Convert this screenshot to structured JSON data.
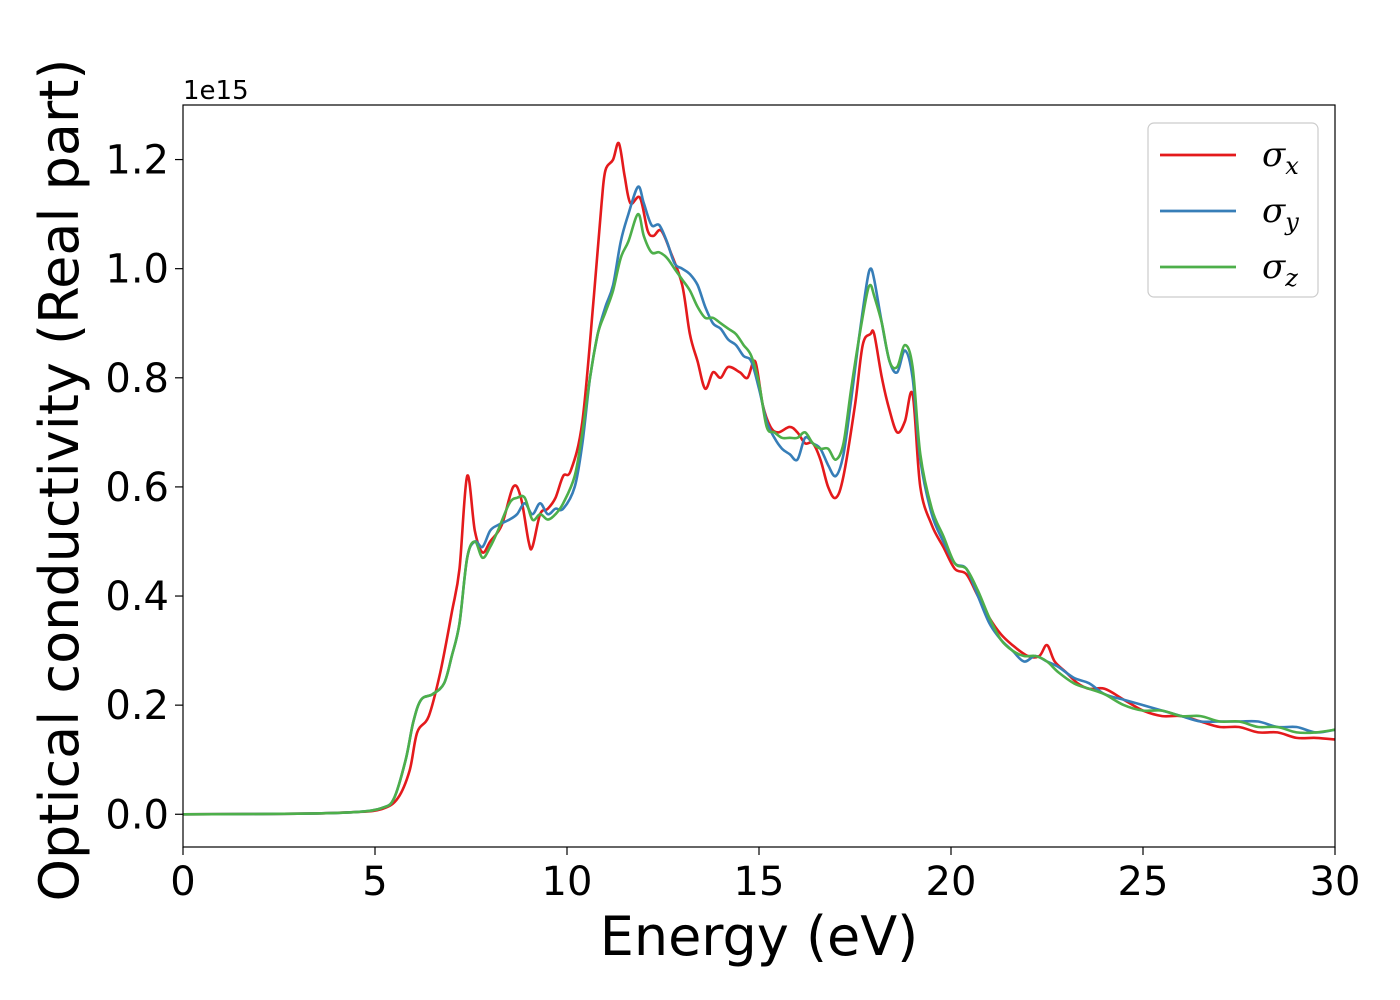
{
  "chart_data": {
    "type": "line",
    "xlabel": "Energy (eV)",
    "ylabel": "Optical conductivity (Real part)",
    "y_offset_label": "1e15",
    "xlim": [
      0,
      30
    ],
    "ylim": [
      -0.06,
      1.3
    ],
    "x_ticks": [
      "0",
      "5",
      "10",
      "15",
      "20",
      "25",
      "30"
    ],
    "y_ticks": [
      "0.0",
      "0.2",
      "0.4",
      "0.6",
      "0.8",
      "1.0",
      "1.2"
    ],
    "grid": false,
    "legend_position": "top-right",
    "series": [
      {
        "name": "σx",
        "symbol": "σ",
        "sub": "x",
        "color": "#e41a1c",
        "points": [
          [
            0,
            0
          ],
          [
            3,
            0.001
          ],
          [
            4.5,
            0.004
          ],
          [
            5.2,
            0.01
          ],
          [
            5.6,
            0.03
          ],
          [
            5.9,
            0.08
          ],
          [
            6.1,
            0.15
          ],
          [
            6.4,
            0.18
          ],
          [
            6.7,
            0.26
          ],
          [
            7.0,
            0.37
          ],
          [
            7.2,
            0.45
          ],
          [
            7.4,
            0.62
          ],
          [
            7.6,
            0.52
          ],
          [
            7.8,
            0.48
          ],
          [
            8.0,
            0.5
          ],
          [
            8.3,
            0.53
          ],
          [
            8.6,
            0.6
          ],
          [
            8.8,
            0.58
          ],
          [
            9.0,
            0.5
          ],
          [
            9.1,
            0.49
          ],
          [
            9.3,
            0.55
          ],
          [
            9.5,
            0.56
          ],
          [
            9.7,
            0.58
          ],
          [
            9.9,
            0.62
          ],
          [
            10.1,
            0.63
          ],
          [
            10.4,
            0.72
          ],
          [
            10.7,
            0.95
          ],
          [
            10.9,
            1.12
          ],
          [
            11.0,
            1.18
          ],
          [
            11.2,
            1.2
          ],
          [
            11.35,
            1.23
          ],
          [
            11.5,
            1.17
          ],
          [
            11.65,
            1.12
          ],
          [
            11.9,
            1.13
          ],
          [
            12.1,
            1.07
          ],
          [
            12.25,
            1.06
          ],
          [
            12.45,
            1.07
          ],
          [
            12.7,
            1.03
          ],
          [
            13.0,
            0.97
          ],
          [
            13.2,
            0.88
          ],
          [
            13.4,
            0.83
          ],
          [
            13.6,
            0.78
          ],
          [
            13.8,
            0.81
          ],
          [
            14.0,
            0.8
          ],
          [
            14.2,
            0.82
          ],
          [
            14.5,
            0.81
          ],
          [
            14.7,
            0.8
          ],
          [
            14.9,
            0.83
          ],
          [
            15.1,
            0.75
          ],
          [
            15.3,
            0.71
          ],
          [
            15.5,
            0.7
          ],
          [
            15.8,
            0.71
          ],
          [
            16.0,
            0.7
          ],
          [
            16.2,
            0.68
          ],
          [
            16.4,
            0.68
          ],
          [
            16.6,
            0.65
          ],
          [
            16.8,
            0.6
          ],
          [
            17.0,
            0.58
          ],
          [
            17.2,
            0.62
          ],
          [
            17.5,
            0.75
          ],
          [
            17.7,
            0.86
          ],
          [
            17.9,
            0.88
          ],
          [
            18.0,
            0.88
          ],
          [
            18.2,
            0.8
          ],
          [
            18.4,
            0.74
          ],
          [
            18.6,
            0.7
          ],
          [
            18.8,
            0.72
          ],
          [
            19.0,
            0.77
          ],
          [
            19.2,
            0.6
          ],
          [
            19.5,
            0.53
          ],
          [
            19.8,
            0.49
          ],
          [
            20.1,
            0.45
          ],
          [
            20.4,
            0.44
          ],
          [
            20.7,
            0.4
          ],
          [
            21.0,
            0.36
          ],
          [
            21.3,
            0.33
          ],
          [
            21.6,
            0.31
          ],
          [
            22.0,
            0.29
          ],
          [
            22.3,
            0.29
          ],
          [
            22.5,
            0.31
          ],
          [
            22.7,
            0.28
          ],
          [
            23.0,
            0.26
          ],
          [
            23.3,
            0.24
          ],
          [
            23.6,
            0.23
          ],
          [
            24.0,
            0.23
          ],
          [
            24.5,
            0.21
          ],
          [
            25.0,
            0.19
          ],
          [
            25.5,
            0.18
          ],
          [
            26.0,
            0.18
          ],
          [
            26.5,
            0.17
          ],
          [
            27.0,
            0.16
          ],
          [
            27.5,
            0.16
          ],
          [
            28.0,
            0.15
          ],
          [
            28.5,
            0.15
          ],
          [
            29.0,
            0.14
          ],
          [
            29.5,
            0.14
          ],
          [
            30.0,
            0.137
          ]
        ]
      },
      {
        "name": "σy",
        "symbol": "σ",
        "sub": "y",
        "color": "#377eb8",
        "points": [
          [
            0,
            0
          ],
          [
            3,
            0.001
          ],
          [
            4.5,
            0.004
          ],
          [
            5.2,
            0.012
          ],
          [
            5.5,
            0.03
          ],
          [
            5.8,
            0.1
          ],
          [
            6.0,
            0.17
          ],
          [
            6.2,
            0.21
          ],
          [
            6.5,
            0.22
          ],
          [
            6.8,
            0.24
          ],
          [
            7.0,
            0.29
          ],
          [
            7.2,
            0.35
          ],
          [
            7.4,
            0.47
          ],
          [
            7.6,
            0.5
          ],
          [
            7.8,
            0.49
          ],
          [
            8.0,
            0.52
          ],
          [
            8.2,
            0.53
          ],
          [
            8.5,
            0.54
          ],
          [
            8.7,
            0.55
          ],
          [
            8.9,
            0.57
          ],
          [
            9.1,
            0.55
          ],
          [
            9.3,
            0.57
          ],
          [
            9.5,
            0.55
          ],
          [
            9.7,
            0.56
          ],
          [
            9.9,
            0.56
          ],
          [
            10.2,
            0.6
          ],
          [
            10.4,
            0.68
          ],
          [
            10.6,
            0.8
          ],
          [
            10.8,
            0.88
          ],
          [
            11.0,
            0.93
          ],
          [
            11.2,
            0.97
          ],
          [
            11.4,
            1.05
          ],
          [
            11.6,
            1.1
          ],
          [
            11.85,
            1.15
          ],
          [
            12.0,
            1.12
          ],
          [
            12.2,
            1.08
          ],
          [
            12.4,
            1.08
          ],
          [
            12.6,
            1.05
          ],
          [
            12.8,
            1.01
          ],
          [
            13.0,
            1.0
          ],
          [
            13.2,
            0.99
          ],
          [
            13.4,
            0.97
          ],
          [
            13.6,
            0.93
          ],
          [
            13.8,
            0.9
          ],
          [
            14.0,
            0.89
          ],
          [
            14.2,
            0.87
          ],
          [
            14.4,
            0.86
          ],
          [
            14.6,
            0.84
          ],
          [
            14.8,
            0.83
          ],
          [
            15.0,
            0.78
          ],
          [
            15.2,
            0.72
          ],
          [
            15.4,
            0.69
          ],
          [
            15.6,
            0.67
          ],
          [
            15.8,
            0.66
          ],
          [
            16.0,
            0.65
          ],
          [
            16.2,
            0.69
          ],
          [
            16.4,
            0.68
          ],
          [
            16.6,
            0.67
          ],
          [
            16.8,
            0.64
          ],
          [
            17.0,
            0.62
          ],
          [
            17.2,
            0.66
          ],
          [
            17.4,
            0.76
          ],
          [
            17.6,
            0.87
          ],
          [
            17.8,
            0.97
          ],
          [
            17.9,
            1.0
          ],
          [
            18.0,
            0.98
          ],
          [
            18.2,
            0.9
          ],
          [
            18.4,
            0.83
          ],
          [
            18.6,
            0.81
          ],
          [
            18.8,
            0.85
          ],
          [
            19.0,
            0.8
          ],
          [
            19.2,
            0.65
          ],
          [
            19.5,
            0.55
          ],
          [
            19.8,
            0.5
          ],
          [
            20.1,
            0.46
          ],
          [
            20.4,
            0.45
          ],
          [
            20.7,
            0.4
          ],
          [
            21.0,
            0.35
          ],
          [
            21.3,
            0.32
          ],
          [
            21.6,
            0.3
          ],
          [
            21.9,
            0.28
          ],
          [
            22.2,
            0.29
          ],
          [
            22.5,
            0.28
          ],
          [
            22.8,
            0.27
          ],
          [
            23.2,
            0.25
          ],
          [
            23.6,
            0.24
          ],
          [
            24.0,
            0.22
          ],
          [
            24.5,
            0.21
          ],
          [
            25.0,
            0.2
          ],
          [
            25.5,
            0.19
          ],
          [
            26.0,
            0.18
          ],
          [
            26.5,
            0.17
          ],
          [
            27.0,
            0.17
          ],
          [
            27.5,
            0.17
          ],
          [
            28.0,
            0.17
          ],
          [
            28.5,
            0.16
          ],
          [
            29.0,
            0.16
          ],
          [
            29.5,
            0.15
          ],
          [
            30.0,
            0.155
          ]
        ]
      },
      {
        "name": "σz",
        "symbol": "σ",
        "sub": "z",
        "color": "#4daf4a",
        "points": [
          [
            0,
            0
          ],
          [
            3,
            0.001
          ],
          [
            4.5,
            0.004
          ],
          [
            5.2,
            0.012
          ],
          [
            5.5,
            0.03
          ],
          [
            5.8,
            0.1
          ],
          [
            6.0,
            0.17
          ],
          [
            6.2,
            0.21
          ],
          [
            6.5,
            0.22
          ],
          [
            6.8,
            0.24
          ],
          [
            7.0,
            0.29
          ],
          [
            7.2,
            0.35
          ],
          [
            7.4,
            0.47
          ],
          [
            7.6,
            0.5
          ],
          [
            7.8,
            0.47
          ],
          [
            8.0,
            0.49
          ],
          [
            8.2,
            0.52
          ],
          [
            8.5,
            0.57
          ],
          [
            8.7,
            0.58
          ],
          [
            8.9,
            0.58
          ],
          [
            9.1,
            0.54
          ],
          [
            9.3,
            0.55
          ],
          [
            9.5,
            0.54
          ],
          [
            9.7,
            0.55
          ],
          [
            9.9,
            0.57
          ],
          [
            10.2,
            0.62
          ],
          [
            10.4,
            0.7
          ],
          [
            10.6,
            0.8
          ],
          [
            10.8,
            0.88
          ],
          [
            11.0,
            0.92
          ],
          [
            11.2,
            0.96
          ],
          [
            11.4,
            1.02
          ],
          [
            11.6,
            1.05
          ],
          [
            11.85,
            1.1
          ],
          [
            12.0,
            1.06
          ],
          [
            12.2,
            1.03
          ],
          [
            12.4,
            1.03
          ],
          [
            12.6,
            1.02
          ],
          [
            12.8,
            1.0
          ],
          [
            13.0,
            0.98
          ],
          [
            13.2,
            0.96
          ],
          [
            13.4,
            0.93
          ],
          [
            13.6,
            0.91
          ],
          [
            13.8,
            0.91
          ],
          [
            14.0,
            0.9
          ],
          [
            14.2,
            0.89
          ],
          [
            14.4,
            0.88
          ],
          [
            14.6,
            0.86
          ],
          [
            14.8,
            0.84
          ],
          [
            15.0,
            0.79
          ],
          [
            15.2,
            0.71
          ],
          [
            15.4,
            0.7
          ],
          [
            15.6,
            0.69
          ],
          [
            15.8,
            0.69
          ],
          [
            16.0,
            0.69
          ],
          [
            16.2,
            0.7
          ],
          [
            16.4,
            0.68
          ],
          [
            16.6,
            0.67
          ],
          [
            16.8,
            0.67
          ],
          [
            17.0,
            0.65
          ],
          [
            17.2,
            0.68
          ],
          [
            17.4,
            0.78
          ],
          [
            17.6,
            0.87
          ],
          [
            17.8,
            0.95
          ],
          [
            17.9,
            0.97
          ],
          [
            18.0,
            0.95
          ],
          [
            18.2,
            0.9
          ],
          [
            18.4,
            0.83
          ],
          [
            18.6,
            0.82
          ],
          [
            18.8,
            0.86
          ],
          [
            19.0,
            0.82
          ],
          [
            19.2,
            0.66
          ],
          [
            19.5,
            0.56
          ],
          [
            19.8,
            0.51
          ],
          [
            20.1,
            0.46
          ],
          [
            20.4,
            0.45
          ],
          [
            20.7,
            0.41
          ],
          [
            21.0,
            0.36
          ],
          [
            21.3,
            0.32
          ],
          [
            21.6,
            0.3
          ],
          [
            21.9,
            0.29
          ],
          [
            22.2,
            0.29
          ],
          [
            22.5,
            0.28
          ],
          [
            22.8,
            0.26
          ],
          [
            23.2,
            0.24
          ],
          [
            23.6,
            0.23
          ],
          [
            24.0,
            0.22
          ],
          [
            24.5,
            0.2
          ],
          [
            25.0,
            0.19
          ],
          [
            25.5,
            0.19
          ],
          [
            26.0,
            0.18
          ],
          [
            26.5,
            0.18
          ],
          [
            27.0,
            0.17
          ],
          [
            27.5,
            0.17
          ],
          [
            28.0,
            0.16
          ],
          [
            28.5,
            0.16
          ],
          [
            29.0,
            0.15
          ],
          [
            29.5,
            0.15
          ],
          [
            30.0,
            0.155
          ]
        ]
      }
    ]
  }
}
